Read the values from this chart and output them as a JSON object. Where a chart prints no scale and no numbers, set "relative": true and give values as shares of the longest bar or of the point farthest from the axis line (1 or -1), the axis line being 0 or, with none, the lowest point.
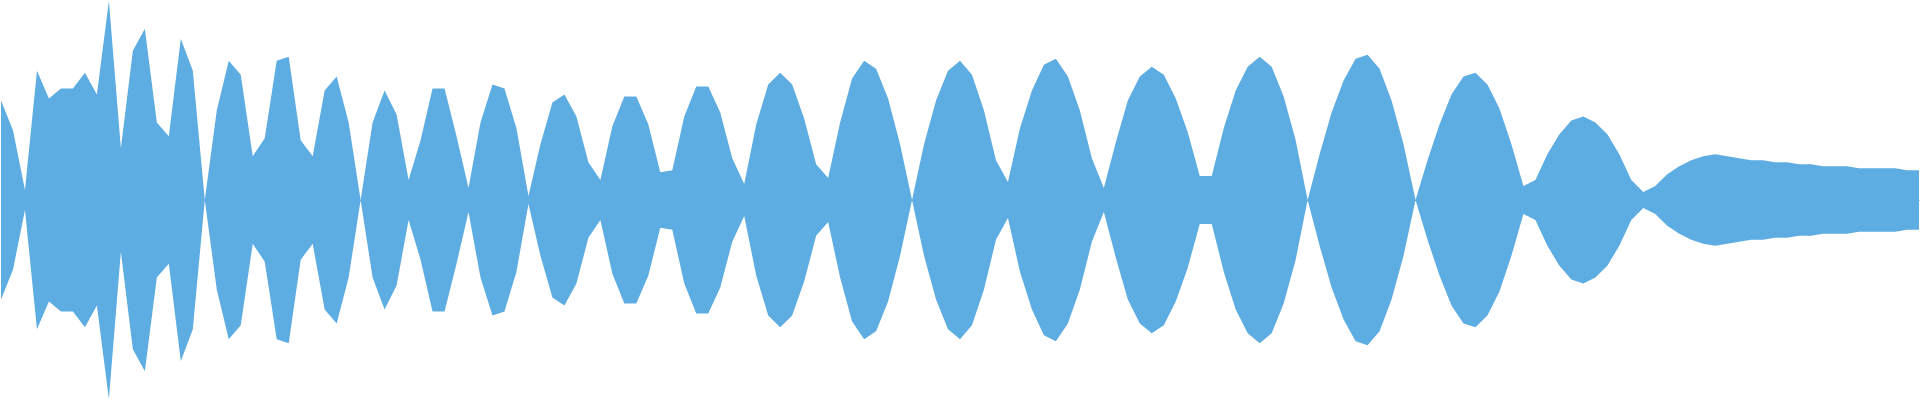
{
  "chart_data": {
    "type": "area",
    "relative": true,
    "categories": [
      null,
      null,
      null,
      null,
      null,
      null,
      null,
      null,
      null,
      null,
      null,
      null,
      null,
      null,
      null,
      null,
      null,
      null,
      null,
      null,
      null,
      null,
      null,
      null,
      null,
      null,
      null,
      null,
      null,
      null,
      null,
      null,
      null,
      null,
      null,
      null,
      null,
      null,
      null,
      null,
      null,
      null,
      null,
      null,
      null,
      null,
      null,
      null,
      null,
      null,
      null,
      null,
      null,
      null,
      null,
      null,
      null,
      null,
      null,
      null,
      null,
      null,
      null,
      null,
      null,
      null,
      null,
      null,
      null,
      null,
      null,
      null,
      null,
      null,
      null,
      null,
      null,
      null,
      null,
      null,
      null,
      null,
      null,
      null,
      null,
      null,
      null,
      null,
      null,
      null,
      null,
      null,
      null,
      null,
      null,
      null,
      null,
      null,
      null,
      null,
      null,
      null,
      null,
      null,
      null,
      null,
      null,
      null,
      null,
      null,
      null,
      null,
      null,
      null,
      null,
      null,
      null,
      null,
      null,
      null,
      null,
      null,
      null,
      null,
      null,
      null,
      null,
      null,
      null,
      null,
      null,
      null,
      null,
      null,
      null,
      null,
      null,
      null,
      null,
      null,
      null,
      null,
      null,
      null,
      null,
      null,
      null,
      null,
      null,
      null,
      null,
      null,
      null,
      null,
      null,
      null,
      null,
      null,
      null,
      null,
      null
    ],
    "series": [
      {
        "color": "#5dade2",
        "values": [
          0.5,
          0.35,
          0.05,
          0.65,
          0.51,
          0.56,
          0.56,
          0.64,
          0.53,
          1,
          0.26,
          0.75,
          0.86,
          0.39,
          0.32,
          0.81,
          0.65,
          0,
          0.45,
          0.7,
          0.63,
          0.22,
          0.31,
          0.7,
          0.72,
          0.3,
          0.22,
          0.55,
          0.62,
          0.39,
          0,
          0.39,
          0.55,
          0.43,
          0.1,
          0.3,
          0.56,
          0.56,
          0.32,
          0.06,
          0.39,
          0.58,
          0.56,
          0.36,
          0.02,
          0.28,
          0.49,
          0.53,
          0.42,
          0.19,
          0.1,
          0.37,
          0.52,
          0.52,
          0.38,
          0.14,
          0.15,
          0.42,
          0.57,
          0.57,
          0.44,
          0.21,
          0.08,
          0.38,
          0.58,
          0.64,
          0.58,
          0.41,
          0.18,
          0.11,
          0.39,
          0.61,
          0.7,
          0.66,
          0.51,
          0.28,
          0,
          0.28,
          0.5,
          0.65,
          0.7,
          0.63,
          0.45,
          0.2,
          0.09,
          0.36,
          0.55,
          0.68,
          0.71,
          0.62,
          0.45,
          0.21,
          0.06,
          0.29,
          0.5,
          0.62,
          0.67,
          0.63,
          0.51,
          0.34,
          0.12,
          0.12,
          0.36,
          0.55,
          0.67,
          0.72,
          0.67,
          0.52,
          0.3,
          0,
          0.23,
          0.44,
          0.6,
          0.71,
          0.73,
          0.66,
          0.5,
          0.28,
          0,
          0.2,
          0.38,
          0.53,
          0.62,
          0.64,
          0.58,
          0.46,
          0.28,
          0.07,
          0.1,
          0.23,
          0.33,
          0.4,
          0.42,
          0.39,
          0.33,
          0.23,
          0.1,
          0.04,
          0.07,
          0.13,
          0.17,
          0.2,
          0.22,
          0.23,
          0.22,
          0.21,
          0.2,
          0.2,
          0.19,
          0.19,
          0.18,
          0.18,
          0.17,
          0.17,
          0.17,
          0.16,
          0.16,
          0.16,
          0.16,
          0.15,
          0.15
        ]
      },
      {
        "color": "#5dade2",
        "values": [
          -0.5,
          -0.35,
          -0.05,
          -0.65,
          -0.51,
          -0.56,
          -0.56,
          -0.64,
          -0.53,
          -1,
          -0.26,
          -0.75,
          -0.86,
          -0.39,
          -0.32,
          -0.81,
          -0.65,
          0,
          -0.45,
          -0.7,
          -0.63,
          -0.22,
          -0.31,
          -0.7,
          -0.72,
          -0.3,
          -0.22,
          -0.55,
          -0.62,
          -0.39,
          0,
          -0.39,
          -0.55,
          -0.43,
          -0.1,
          -0.3,
          -0.56,
          -0.56,
          -0.32,
          -0.06,
          -0.39,
          -0.58,
          -0.56,
          -0.36,
          -0.02,
          -0.28,
          -0.49,
          -0.53,
          -0.42,
          -0.19,
          -0.1,
          -0.37,
          -0.52,
          -0.52,
          -0.38,
          -0.14,
          -0.15,
          -0.42,
          -0.57,
          -0.57,
          -0.44,
          -0.21,
          -0.08,
          -0.38,
          -0.58,
          -0.64,
          -0.58,
          -0.41,
          -0.18,
          -0.11,
          -0.39,
          -0.61,
          -0.7,
          -0.66,
          -0.51,
          -0.28,
          0,
          -0.28,
          -0.5,
          -0.65,
          -0.7,
          -0.63,
          -0.45,
          -0.2,
          -0.09,
          -0.36,
          -0.55,
          -0.68,
          -0.71,
          -0.62,
          -0.45,
          -0.21,
          -0.06,
          -0.29,
          -0.5,
          -0.62,
          -0.67,
          -0.63,
          -0.51,
          -0.34,
          -0.12,
          -0.12,
          -0.36,
          -0.55,
          -0.67,
          -0.72,
          -0.67,
          -0.52,
          -0.3,
          0,
          -0.23,
          -0.44,
          -0.6,
          -0.71,
          -0.73,
          -0.66,
          -0.5,
          -0.28,
          0,
          -0.2,
          -0.38,
          -0.53,
          -0.62,
          -0.64,
          -0.58,
          -0.46,
          -0.28,
          -0.07,
          -0.1,
          -0.23,
          -0.33,
          -0.4,
          -0.42,
          -0.39,
          -0.33,
          -0.23,
          -0.1,
          -0.04,
          -0.07,
          -0.13,
          -0.17,
          -0.2,
          -0.22,
          -0.23,
          -0.22,
          -0.21,
          -0.2,
          -0.2,
          -0.19,
          -0.19,
          -0.18,
          -0.18,
          -0.17,
          -0.17,
          -0.17,
          -0.16,
          -0.16,
          -0.16,
          -0.16,
          -0.15,
          -0.15
        ]
      }
    ]
  }
}
